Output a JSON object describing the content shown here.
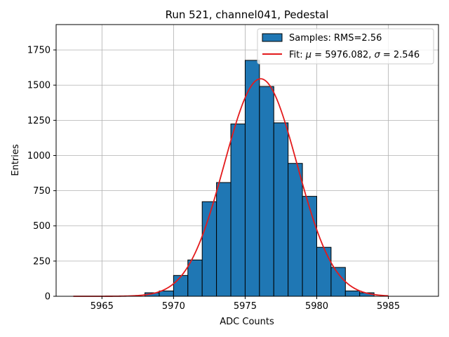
{
  "chart_data": {
    "type": "bar",
    "title": "Run 521, channel041, Pedestal",
    "xlabel": "ADC Counts",
    "ylabel": "Entries",
    "xlim": [
      5961.8,
      5988.5
    ],
    "ylim": [
      0,
      1930
    ],
    "xticks": [
      5965,
      5970,
      5975,
      5980,
      5985
    ],
    "yticks": [
      0,
      250,
      500,
      750,
      1000,
      1250,
      1500,
      1750
    ],
    "grid": true,
    "legend_position": "top-right",
    "histogram": {
      "name": "Samples: RMS=2.56",
      "color": "#1f77b4",
      "bin_edges": [
        5968,
        5969,
        5970,
        5971,
        5972,
        5973,
        5974,
        5975,
        5976,
        5977,
        5978,
        5979,
        5980,
        5981,
        5982,
        5983,
        5984
      ],
      "counts": [
        25,
        38,
        148,
        258,
        672,
        808,
        1224,
        1676,
        1490,
        1232,
        944,
        710,
        348,
        205,
        38,
        25
      ]
    },
    "fit": {
      "name": "Fit: μ = 5976.082, σ = 2.546",
      "name_parts": {
        "prefix": "Fit: ",
        "mu_symbol": "μ",
        "mu_text": " = 5976.082, ",
        "sigma_symbol": "σ",
        "sigma_text": " = 2.546"
      },
      "color": "#e31a1c",
      "mu": 5976.082,
      "sigma": 2.546,
      "amplitude": 1545,
      "x_range": [
        5963,
        5985
      ]
    }
  }
}
